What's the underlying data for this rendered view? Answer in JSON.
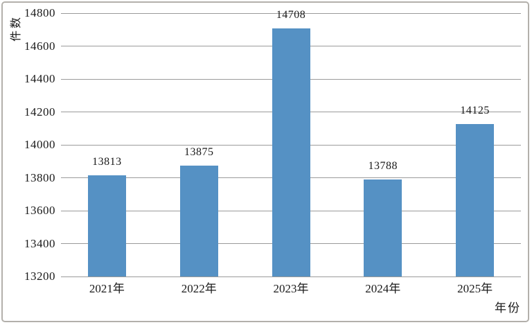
{
  "chart_data": {
    "type": "bar",
    "title": "",
    "ylabel": "件数",
    "xlabel": "年份",
    "categories": [
      "2021年",
      "2022年",
      "2023年",
      "2024年",
      "2025年"
    ],
    "values": [
      13813,
      13875,
      14708,
      13788,
      14125
    ],
    "value_labels": [
      "13813",
      "13875",
      "14708",
      "13788",
      "14125"
    ],
    "ylim": [
      13200,
      14800
    ],
    "ytick_step": 200,
    "yticks": [
      13200,
      13400,
      13600,
      13800,
      14000,
      14200,
      14400,
      14600,
      14800
    ],
    "grid": "horizontal-on",
    "legend": "none",
    "colors": {
      "bar": "#5591c4",
      "gridline": "#9a9a9a",
      "text": "#1a1a1a",
      "frame_border": "#b3b0ab",
      "background": "#ffffff"
    }
  }
}
